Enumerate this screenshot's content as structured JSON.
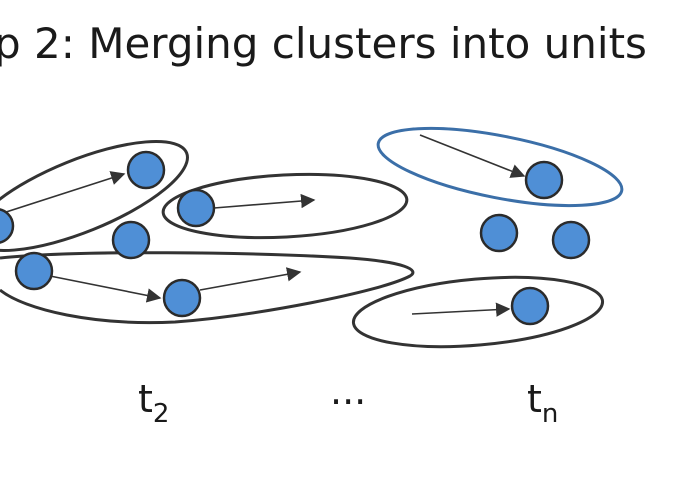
{
  "title": "p 2: Merging clusters into units",
  "time_labels": [
    {
      "base": "t",
      "sub": "2"
    },
    {
      "text": "..."
    },
    {
      "base": "t",
      "sub": "n"
    }
  ],
  "colors": {
    "node_fill": "#4f8fd6",
    "node_stroke": "#2b2b2b",
    "cluster_stroke": "#333333",
    "highlight_stroke": "#3b6fa8",
    "arrow": "#333333"
  },
  "figure": {
    "clusters": 6,
    "highlighted_clusters": 1,
    "nodes": 11,
    "arrows": 6
  }
}
